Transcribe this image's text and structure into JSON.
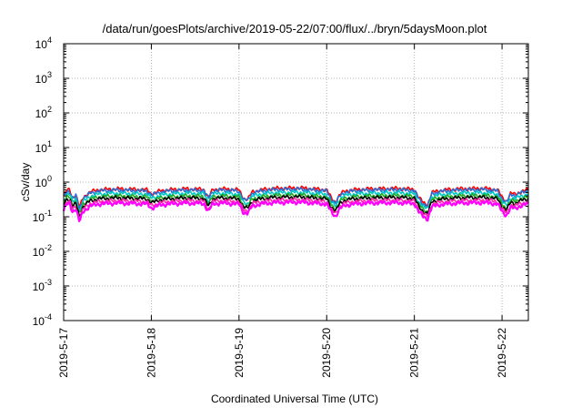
{
  "chart_data": {
    "type": "line",
    "title": "/data/run/goesPlots/archive/2019-05-22/07:00/flux/../bryn/5daysMoon.plot",
    "xlabel": "Coordinated Universal Time (UTC)",
    "ylabel": "cSv/day",
    "x_ticks": [
      "2019-5-17",
      "2019-5-18",
      "2019-5-19",
      "2019-5-20",
      "2019-5-21",
      "2019-5-22"
    ],
    "x_range_days": [
      0,
      5.3
    ],
    "y_scale": "log",
    "ylim": [
      0.0001,
      10000
    ],
    "y_ticks": [
      {
        "base": "10",
        "exp": "-4"
      },
      {
        "base": "10",
        "exp": "-3"
      },
      {
        "base": "10",
        "exp": "-2"
      },
      {
        "base": "10",
        "exp": "-1"
      },
      {
        "base": "10",
        "exp": "0"
      },
      {
        "base": "10",
        "exp": "1"
      },
      {
        "base": "10",
        "exp": "2"
      },
      {
        "base": "10",
        "exp": "3"
      },
      {
        "base": "10",
        "exp": "4"
      }
    ],
    "grid": true,
    "series": [
      {
        "color": "#ff0000",
        "rel": 2.0
      },
      {
        "color": "#2b6fd6",
        "rel": 1.85
      },
      {
        "color": "#00c8c8",
        "rel": 1.5
      },
      {
        "color": "#22aa22",
        "rel": 1.25
      },
      {
        "color": "#000000",
        "rel": 1.1
      },
      {
        "color": "#ff2aa8",
        "rel": 0.92
      },
      {
        "color": "#ff00ff",
        "rel": 0.78
      }
    ],
    "base_profile": {
      "x_days": [
        0,
        0.04,
        0.07,
        0.1,
        0.14,
        0.18,
        0.22,
        0.3,
        0.4,
        0.6,
        0.8,
        0.95,
        1.0,
        1.05,
        1.1,
        1.2,
        1.4,
        1.6,
        1.65,
        1.7,
        1.8,
        2.0,
        2.05,
        2.1,
        2.15,
        2.25,
        2.4,
        2.7,
        3.0,
        3.05,
        3.1,
        3.15,
        3.2,
        3.3,
        3.5,
        3.8,
        4.0,
        4.05,
        4.1,
        4.15,
        4.2,
        4.3,
        4.5,
        4.8,
        4.95,
        5.0,
        5.05,
        5.1,
        5.15,
        5.2,
        5.3
      ],
      "y": [
        0.2,
        0.3,
        0.3,
        0.18,
        0.22,
        0.09,
        0.18,
        0.26,
        0.3,
        0.32,
        0.31,
        0.3,
        0.23,
        0.25,
        0.28,
        0.3,
        0.32,
        0.31,
        0.18,
        0.3,
        0.32,
        0.3,
        0.17,
        0.16,
        0.26,
        0.3,
        0.33,
        0.34,
        0.3,
        0.18,
        0.13,
        0.22,
        0.27,
        0.3,
        0.32,
        0.33,
        0.31,
        0.18,
        0.13,
        0.11,
        0.25,
        0.29,
        0.32,
        0.33,
        0.3,
        0.18,
        0.14,
        0.24,
        0.22,
        0.26,
        0.3
      ]
    }
  }
}
